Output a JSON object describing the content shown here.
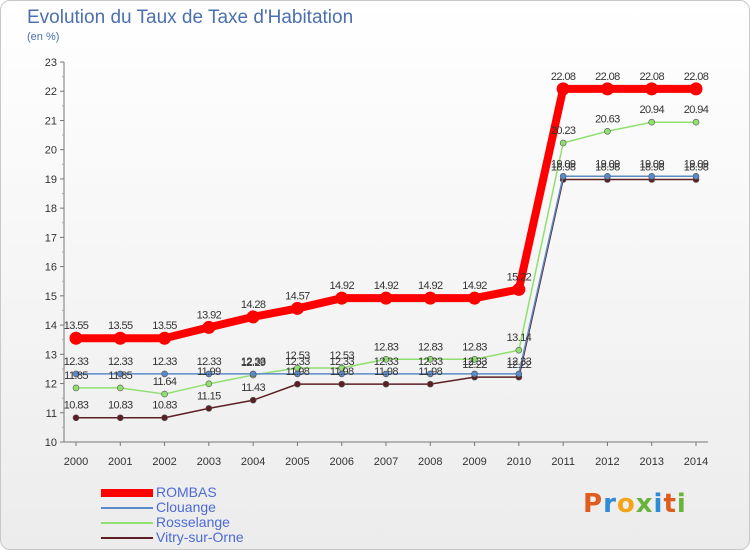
{
  "title": "Evolution du Taux de Taxe d'Habitation",
  "subtitle": "(en %)",
  "logo_text": "Proxiti",
  "logo_colors": [
    "#e05b1e",
    "#2e8bd6",
    "#f2a516",
    "#6ab33b",
    "#2e8bd6",
    "#e05b1e",
    "#6ab33b"
  ],
  "chart_data": {
    "type": "line",
    "title": "Evolution du Taux de Taxe d'Habitation",
    "ylabel": "(en %)",
    "xlabel": "",
    "x": [
      "2000",
      "2001",
      "2002",
      "2003",
      "2004",
      "2005",
      "2006",
      "2007",
      "2008",
      "2009",
      "2010",
      "2011",
      "2012",
      "2013",
      "2014"
    ],
    "ylim": [
      10,
      23
    ],
    "yticks": [
      "10",
      "11",
      "12",
      "13",
      "14",
      "15",
      "16",
      "17",
      "18",
      "19",
      "20",
      "21",
      "22",
      "23"
    ],
    "grid": false,
    "legend_position": "bottom-left",
    "series": [
      {
        "name": "Vitry-sur-Orne",
        "color": "#5c1f24",
        "values": [
          10.83,
          10.83,
          10.83,
          11.15,
          11.43,
          11.98,
          11.98,
          11.98,
          11.98,
          12.22,
          12.22,
          18.98,
          18.98,
          18.98,
          18.98
        ],
        "labels": [
          "10.83",
          "10.83",
          "10.83",
          "11.15",
          "11.43",
          "11.98",
          "11.98",
          "11.98",
          "11.98",
          "12.22",
          "12.22",
          "18.98",
          "18.98",
          "18.98",
          "18.98"
        ]
      },
      {
        "name": "Rosselange",
        "color": "#8fe070",
        "values": [
          11.85,
          11.85,
          11.64,
          11.99,
          12.29,
          12.53,
          12.53,
          12.83,
          12.83,
          12.83,
          13.14,
          20.23,
          20.63,
          20.94,
          20.94
        ],
        "labels": [
          "11.85",
          "11.85",
          "11.64",
          "11.99",
          "12.29",
          "12.53",
          "12.53",
          "12.83",
          "12.83",
          "12.83",
          "13.14",
          "20.23",
          "20.63",
          "20.94",
          "20.94"
        ]
      },
      {
        "name": "Clouange",
        "color": "#5b8ac8",
        "values": [
          12.33,
          12.33,
          12.33,
          12.33,
          12.33,
          12.33,
          12.33,
          12.33,
          12.33,
          12.33,
          12.33,
          19.09,
          19.09,
          19.09,
          19.09
        ],
        "labels": [
          "12.33",
          "12.33",
          "12.33",
          "12.33",
          "12.33",
          "12.33",
          "12.33",
          "12.33",
          "12.33",
          "12.33",
          "12.33",
          "19.09",
          "19.09",
          "19.09",
          "19.09"
        ]
      },
      {
        "name": "ROMBAS",
        "color": "#ff0000",
        "values": [
          13.55,
          13.55,
          13.55,
          13.92,
          14.28,
          14.57,
          14.92,
          14.92,
          14.92,
          14.92,
          15.22,
          22.08,
          22.08,
          22.08,
          22.08
        ],
        "labels": [
          "13.55",
          "13.55",
          "13.55",
          "13.92",
          "14.28",
          "14.57",
          "14.92",
          "14.92",
          "14.92",
          "14.92",
          "15.22",
          "22.08",
          "22.08",
          "22.08",
          "22.08"
        ]
      }
    ],
    "legend": [
      "ROMBAS",
      "Clouange",
      "Rosselange",
      "Vitry-sur-Orne"
    ]
  }
}
